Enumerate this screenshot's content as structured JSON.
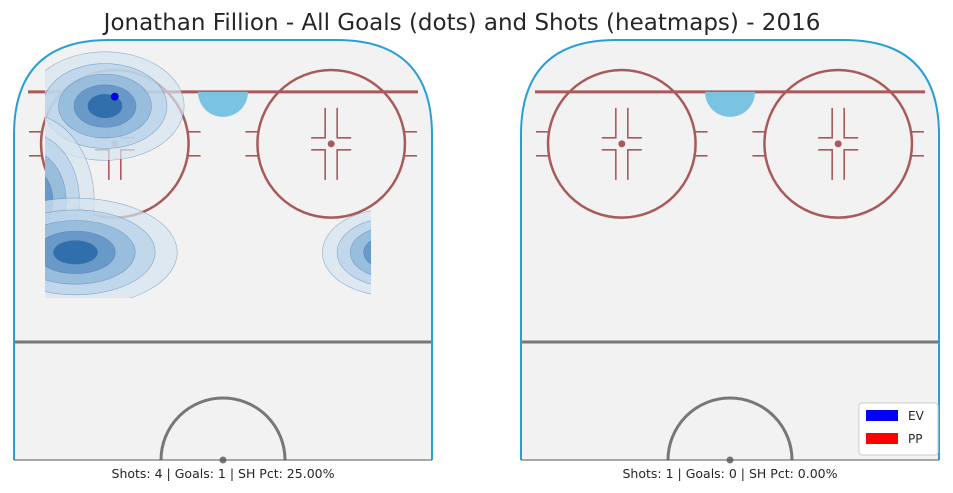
{
  "chart_data": {
    "type": "heatmap",
    "title": "Jonathan Fillion - All Goals (dots) and Shots (heatmaps) - 2016",
    "legend": {
      "placement": "bottom-right",
      "entries": [
        {
          "label": "EV",
          "color": "#0000ff"
        },
        {
          "label": "PP",
          "color": "#ff0000"
        }
      ]
    },
    "colors": {
      "ice": "#f2f2f2",
      "boards": "#2a9fd6",
      "red_line": "#a85a5a",
      "center_line": "#777777",
      "crease": "#7ac4e2",
      "heat_low": "#d4e4f1",
      "heat_high": "#2a6aa8"
    },
    "panels": [
      {
        "id": "left",
        "caption": "Shots: 4 | Goals: 1 | SH Pct: 25.00%",
        "stats": {
          "shots": 4,
          "goals": 1,
          "sh_pct": 25.0
        },
        "shot_clusters": [
          {
            "x": -24,
            "y": 75,
            "sx": 7,
            "sy": 5,
            "weight": 1.0
          },
          {
            "x": -40,
            "y": 55,
            "sx": 6,
            "sy": 8,
            "weight": 1.0
          },
          {
            "x": -30,
            "y": 44,
            "sx": 9,
            "sy": 5,
            "weight": 1.0
          },
          {
            "x": 34,
            "y": 44,
            "sx": 6,
            "sy": 4,
            "weight": 1.0
          }
        ],
        "goals": [
          {
            "x": -22,
            "y": 77,
            "strength": "EV"
          }
        ]
      },
      {
        "id": "right",
        "caption": "Shots: 1 | Goals: 0 | SH Pct: 0.00%",
        "stats": {
          "shots": 1,
          "goals": 0,
          "sh_pct": 0.0
        },
        "shot_clusters": [],
        "goals": []
      }
    ],
    "rink": {
      "x_range": [
        -42.5,
        42.5
      ],
      "y_range": [
        0,
        89
      ],
      "goal_line_y": 78,
      "blue_line_y": 25,
      "faceoff_circles": [
        {
          "x": -22,
          "y": 67
        },
        {
          "x": 22,
          "y": 67
        }
      ],
      "faceoff_radius": 15
    }
  }
}
